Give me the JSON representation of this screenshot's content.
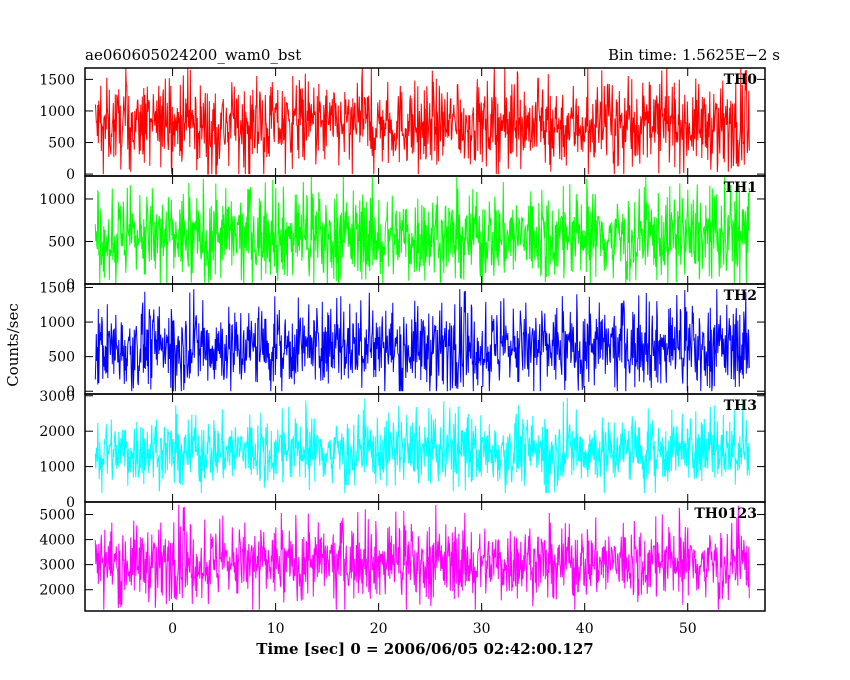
{
  "header": {
    "left_title": "ae060605024200_wam0_bst",
    "right_title": "Bin time: 1.5625E−2 s"
  },
  "chart_data": {
    "type": "line",
    "xlabel": "Time [sec] 0 = 2006/06/05 02:42:00.127",
    "ylabel": "Counts/sec",
    "xlim": [
      -8.5,
      57.5
    ],
    "x_data_range": [
      -7.5,
      56
    ],
    "x_ticks": [
      0,
      10,
      20,
      30,
      40,
      50
    ],
    "grid": false,
    "panels": [
      {
        "label": "TH0",
        "color": "#ff0000",
        "ylim": [
          -30,
          1680
        ],
        "y_ticks": [
          0,
          500,
          1000,
          1500
        ],
        "typical_range": [
          200,
          1350
        ],
        "min": 0,
        "max": 1680,
        "center": 780
      },
      {
        "label": "TH1",
        "color": "#00ff00",
        "ylim": [
          0,
          1270
        ],
        "y_ticks": [
          0,
          500,
          1000
        ],
        "typical_range": [
          120,
          1050
        ],
        "min": 0,
        "max": 1270,
        "center": 560
      },
      {
        "label": "TH2",
        "color": "#0000ff",
        "ylim": [
          -40,
          1550
        ],
        "y_ticks": [
          0,
          500,
          1000,
          1500
        ],
        "typical_range": [
          150,
          1200
        ],
        "min": 0,
        "max": 1480,
        "center": 640
      },
      {
        "label": "TH3",
        "color": "#00ffff",
        "ylim": [
          0,
          3050
        ],
        "y_ticks": [
          0,
          1000,
          2000,
          3000
        ],
        "typical_range": [
          600,
          2300
        ],
        "min": 250,
        "max": 2950,
        "center": 1450
      },
      {
        "label": "TH0123",
        "color": "#ff00ff",
        "ylim": [
          1150,
          5500
        ],
        "y_ticks": [
          2000,
          3000,
          4000,
          5000
        ],
        "typical_range": [
          1700,
          4300
        ],
        "min": 1200,
        "max": 5400,
        "center": 3100
      }
    ]
  }
}
